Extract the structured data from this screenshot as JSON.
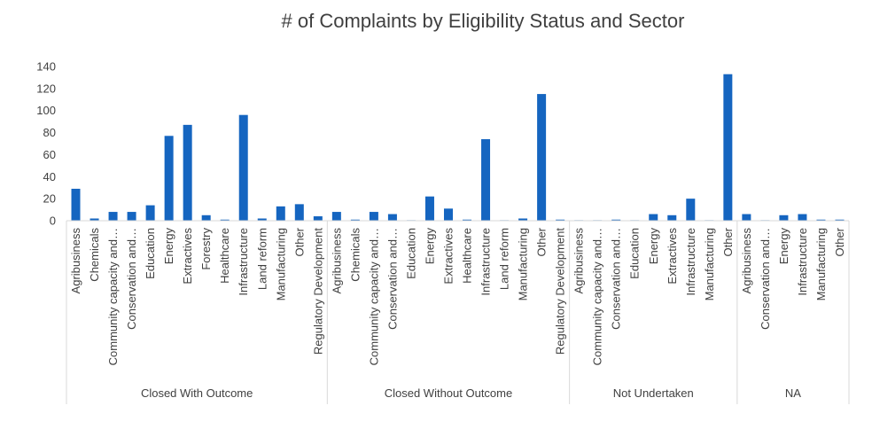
{
  "chart_data": {
    "type": "bar",
    "title": "# of Complaints by Eligibility Status and Sector",
    "xlabel": "",
    "ylabel": "",
    "ylim": [
      0,
      140
    ],
    "yticks": [
      "0",
      "20",
      "40",
      "60",
      "80",
      "100",
      "120",
      "140"
    ],
    "grid": false,
    "bar_color": "#1565c0",
    "groups": [
      {
        "name": "Closed With Outcome",
        "categories": [
          "Agribusiness",
          "Chemicals",
          "Community capacity and…",
          "Conservation and…",
          "Education",
          "Energy",
          "Extractives",
          "Forestry",
          "Healthcare",
          "Infrastructure",
          "Land reform",
          "Manufacturing",
          "Other",
          "Regulatory Development"
        ],
        "values": [
          29,
          2,
          8,
          8,
          14,
          77,
          87,
          5,
          1,
          96,
          2,
          13,
          15,
          4
        ]
      },
      {
        "name": "Closed Without Outcome",
        "categories": [
          "Agribusiness",
          "Chemicals",
          "Community capacity and…",
          "Conservation and…",
          "Education",
          "Energy",
          "Extractives",
          "Healthcare",
          "Infrastructure",
          "Land reform",
          "Manufacturing",
          "Other",
          "Regulatory Development"
        ],
        "values": [
          8,
          1,
          8,
          6,
          0.5,
          22,
          11,
          1,
          74,
          0.5,
          2,
          115,
          1
        ]
      },
      {
        "name": "Not Undertaken",
        "categories": [
          "Agribusiness",
          "Community capacity and…",
          "Conservation and…",
          "Education",
          "Energy",
          "Extractives",
          "Infrastructure",
          "Manufacturing",
          "Other"
        ],
        "values": [
          0.5,
          0.5,
          1,
          0.5,
          6,
          5,
          20,
          0.5,
          133
        ]
      },
      {
        "name": "NA",
        "categories": [
          "Agribusiness",
          "Conservation and…",
          "Energy",
          "Infrastructure",
          "Manufacturing",
          "Other"
        ],
        "values": [
          6,
          0.5,
          5,
          6,
          1,
          1
        ]
      }
    ]
  }
}
